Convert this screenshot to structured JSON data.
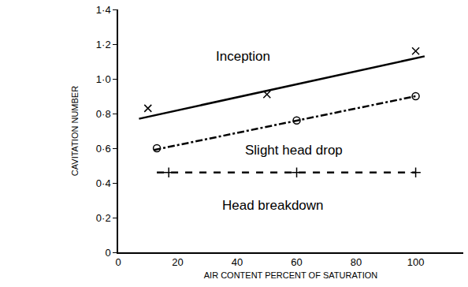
{
  "chart_data": {
    "type": "line",
    "xlabel": "AIR CONTENT PERCENT OF SATURATION",
    "ylabel": "CAVITATION NUMBER",
    "xlim": [
      0,
      116
    ],
    "ylim": [
      0,
      1.4
    ],
    "xticks": [
      0,
      20,
      40,
      60,
      80,
      100
    ],
    "yticks": [
      0,
      {
        "value": 0.2,
        "label": "0·2"
      },
      {
        "value": 0.4,
        "label": "0·4"
      },
      {
        "value": 0.6,
        "label": "0·6"
      },
      {
        "value": 0.8,
        "label": "0·8"
      },
      {
        "value": 1.0,
        "label": "1·0"
      },
      {
        "value": 1.2,
        "label": "1·2"
      },
      {
        "value": 1.4,
        "label": "1·4"
      }
    ],
    "grid": false,
    "series": [
      {
        "x": [
          7,
          103
        ],
        "values": [
          0.77,
          1.13
        ],
        "color": "#000000",
        "line_style": "solid",
        "marker": "none"
      },
      {
        "x": [
          10,
          50,
          100
        ],
        "values": [
          0.83,
          0.91,
          1.16
        ],
        "color": "#000000",
        "line_style": "none",
        "marker": "x"
      },
      {
        "x": [
          12,
          100
        ],
        "values": [
          0.59,
          0.9
        ],
        "color": "#000000",
        "line_style": "dashdot",
        "marker": "none"
      },
      {
        "x": [
          13,
          60,
          100
        ],
        "values": [
          0.6,
          0.76,
          0.9
        ],
        "color": "#000000",
        "line_style": "none",
        "marker": "circle-open"
      },
      {
        "x": [
          13,
          100
        ],
        "values": [
          0.46,
          0.46
        ],
        "color": "#000000",
        "line_style": "dash",
        "marker": "none"
      },
      {
        "x": [
          17,
          60,
          100
        ],
        "values": [
          0.46,
          0.46,
          0.46
        ],
        "color": "#000000",
        "line_style": "none",
        "marker": "cross"
      }
    ],
    "annotations": [
      {
        "text": "Inception",
        "x": 42,
        "y": 1.13
      },
      {
        "text": "Slight head drop",
        "x": 59,
        "y": 0.59
      },
      {
        "text": "Head breakdown",
        "x": 52,
        "y": 0.27
      }
    ]
  }
}
